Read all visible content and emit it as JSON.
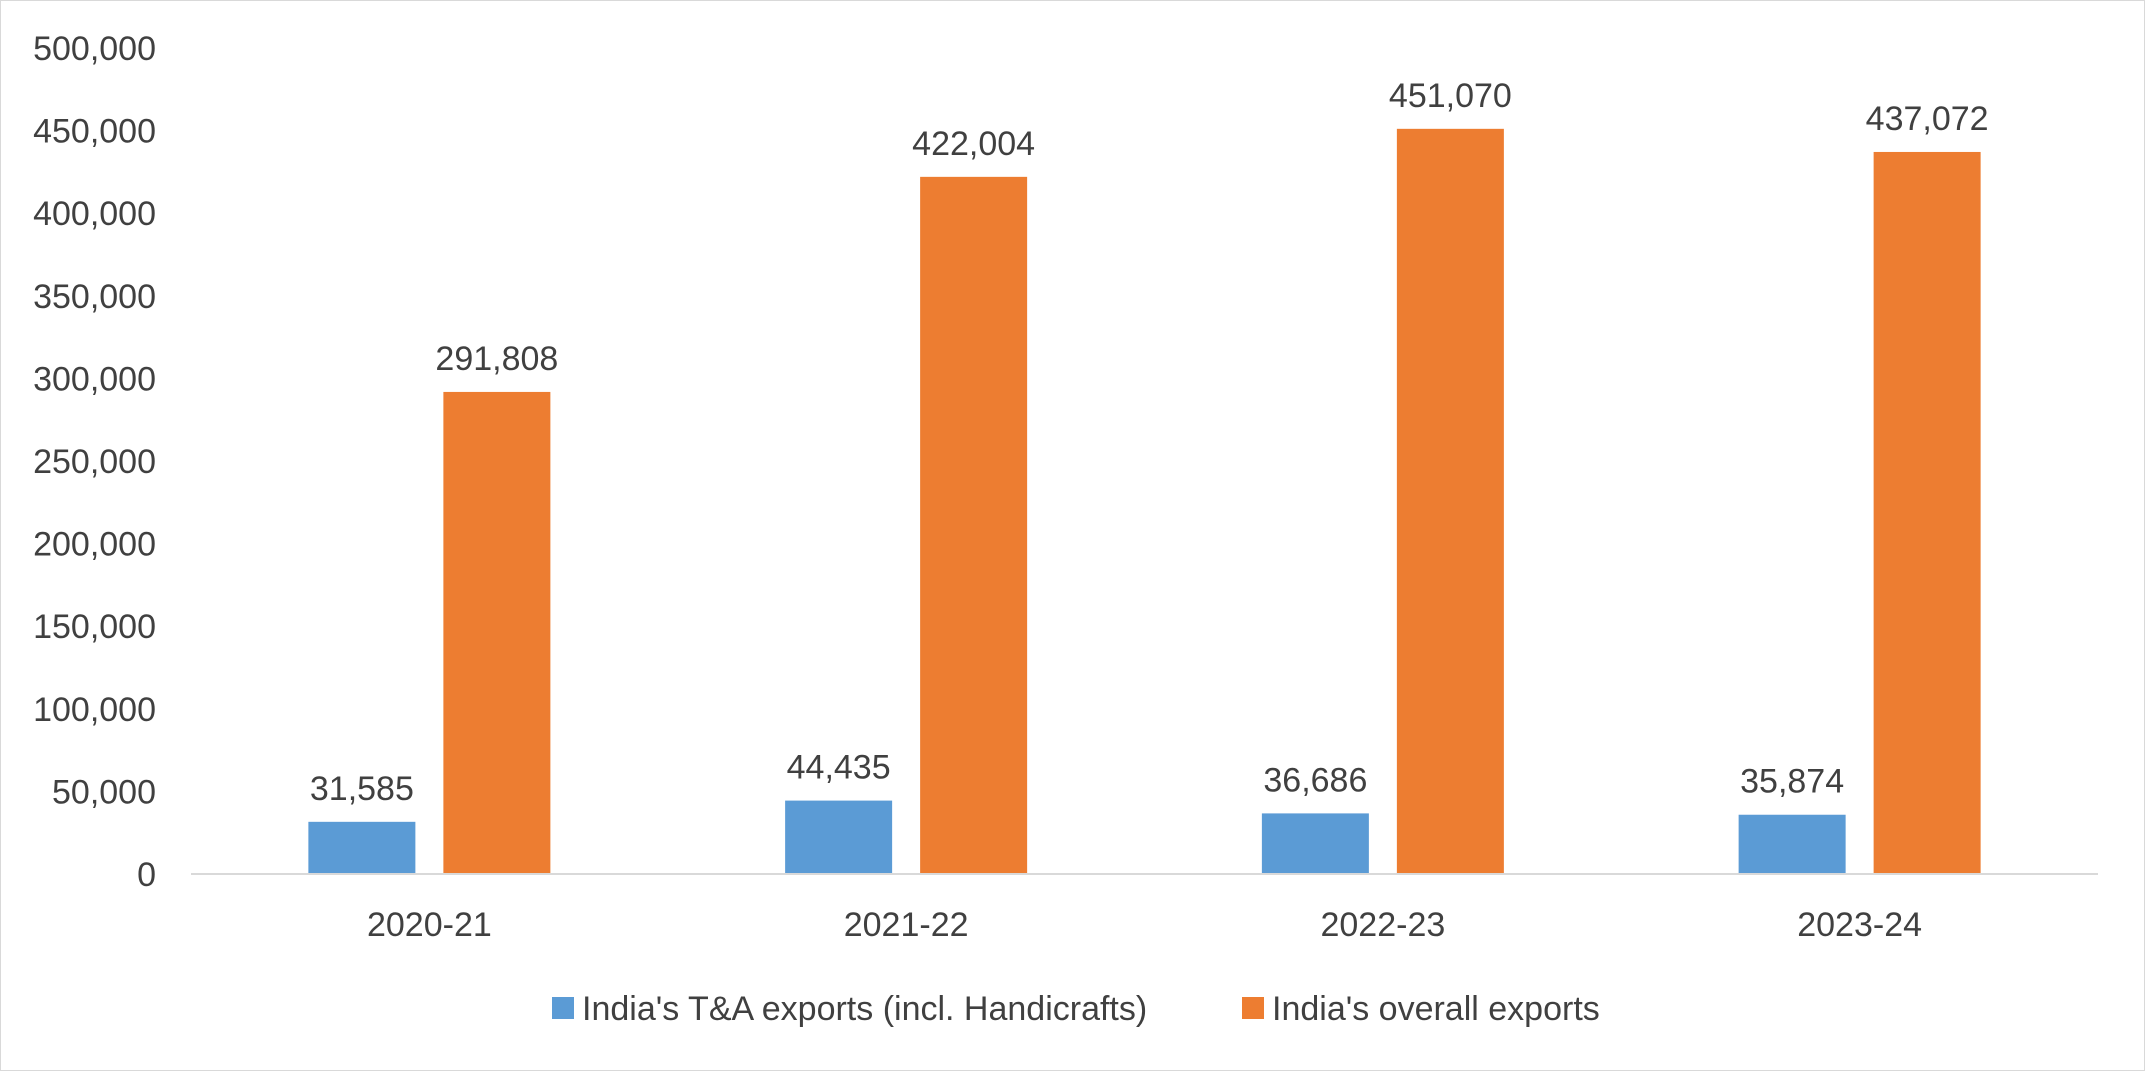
{
  "chart_data": {
    "type": "bar",
    "categories": [
      "2020-21",
      "2021-22",
      "2022-23",
      "2023-24"
    ],
    "series": [
      {
        "name": "India's T&A exports (incl. Handicrafts)",
        "color": "#5b9bd5",
        "values": [
          31585,
          44435,
          36686,
          35874
        ],
        "value_labels": [
          "31,585",
          "44,435",
          "36,686",
          "35,874"
        ]
      },
      {
        "name": "India's overall exports",
        "color": "#ed7d31",
        "values": [
          291808,
          422004,
          451070,
          437072
        ],
        "value_labels": [
          "291,808",
          "422,004",
          "451,070",
          "437,072"
        ]
      }
    ],
    "title": "",
    "xlabel": "",
    "ylabel": "",
    "ylim": [
      0,
      500000
    ],
    "y_ticks": [
      0,
      50000,
      100000,
      150000,
      200000,
      250000,
      300000,
      350000,
      400000,
      450000,
      500000
    ],
    "y_tick_labels": [
      "0",
      "50,000",
      "100,000",
      "150,000",
      "200,000",
      "250,000",
      "300,000",
      "350,000",
      "400,000",
      "450,000",
      "500,000"
    ],
    "grid": false,
    "legend_position": "bottom"
  }
}
